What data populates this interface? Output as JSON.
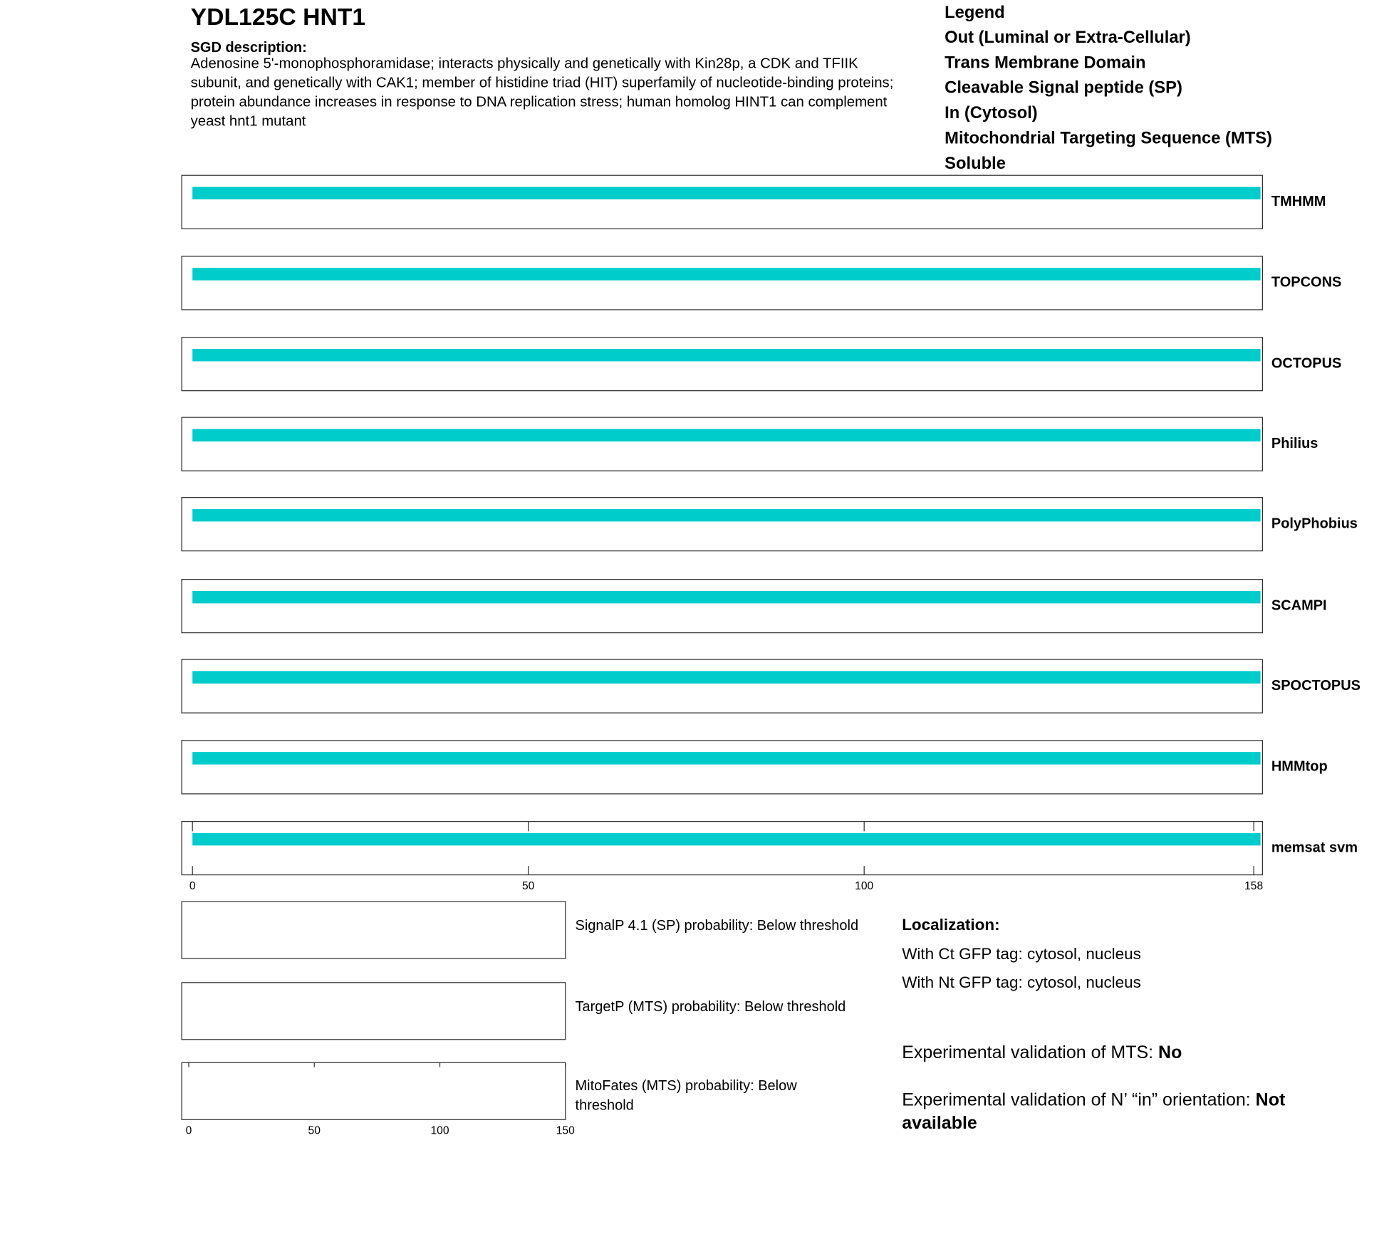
{
  "header": {
    "title": "YDL125C  HNT1",
    "description_label": "SGD description:",
    "description_lines": [
      "Adenosine 5'-monophosphoramidase; interacts physically and genetically with Kin28p, a CDK and TFIIK",
      "subunit, and genetically with CAK1; member of histidine triad (HIT) superfamily of nucleotide-binding proteins;",
      "protein abundance increases in response to DNA replication stress; human homolog HINT1 can complement",
      "yeast hnt1 mutant"
    ]
  },
  "legend": {
    "title": "Legend",
    "items": [
      {
        "label": "Out (Luminal or Extra-Cellular)",
        "color": "#9e9ac8"
      },
      {
        "label": "Trans Membrane Domain",
        "color": "#7fcc96"
      },
      {
        "label": "Cleavable Signal peptide (SP)",
        "color": "#b6d4ee"
      },
      {
        "label": "In (Cytosol)",
        "color": "#f0a9a9"
      },
      {
        "label": "Mitochondrial Targeting Sequence (MTS)",
        "color": "#e8ad2c"
      },
      {
        "label": "Soluble",
        "color": "#00cccc"
      }
    ]
  },
  "topology": {
    "xlim": [
      -1.6,
      159.3
    ],
    "xticks": [
      0,
      50,
      100,
      158
    ],
    "tracks": [
      {
        "name": "TMHMM",
        "segments": [
          {
            "start": 0,
            "end": 159,
            "color": "#00cccc"
          }
        ]
      },
      {
        "name": "TOPCONS",
        "segments": [
          {
            "start": 0,
            "end": 159,
            "color": "#00cccc"
          }
        ]
      },
      {
        "name": "OCTOPUS",
        "segments": [
          {
            "start": 0,
            "end": 159,
            "color": "#00cccc"
          }
        ]
      },
      {
        "name": "Philius",
        "segments": [
          {
            "start": 0,
            "end": 159,
            "color": "#00cccc"
          }
        ]
      },
      {
        "name": "PolyPhobius",
        "segments": [
          {
            "start": 0,
            "end": 159,
            "color": "#00cccc"
          }
        ]
      },
      {
        "name": "SCAMPI",
        "segments": [
          {
            "start": 0,
            "end": 159,
            "color": "#00cccc"
          }
        ]
      },
      {
        "name": "SPOCTOPUS",
        "segments": [
          {
            "start": 0,
            "end": 159,
            "color": "#00cccc"
          }
        ]
      },
      {
        "name": "HMMtop",
        "segments": [
          {
            "start": 0,
            "end": 159,
            "color": "#00cccc"
          }
        ]
      },
      {
        "name": "memsat svm",
        "segments": [
          {
            "start": 0,
            "end": 159,
            "color": "#00cccc"
          }
        ]
      }
    ]
  },
  "predictions": {
    "xlim": [
      -2.8,
      150
    ],
    "xticks": [
      0,
      50,
      100,
      150
    ],
    "panels": [
      {
        "label": "SignalP 4.1 (SP) probability: Below threshold"
      },
      {
        "label": "TargetP (MTS) probability: Below threshold"
      },
      {
        "label": "MitoFates (MTS) probability: Below threshold"
      }
    ]
  },
  "localization": {
    "title": "Localization:",
    "lines": [
      "With Ct GFP tag: cytosol, nucleus",
      "With Nt GFP tag: cytosol, nucleus"
    ],
    "validations": [
      {
        "label": "Experimental validation of MTS:",
        "value": "No"
      },
      {
        "label": "Experimental validation of N’ “in” orientation:",
        "value": "Not available"
      }
    ]
  }
}
